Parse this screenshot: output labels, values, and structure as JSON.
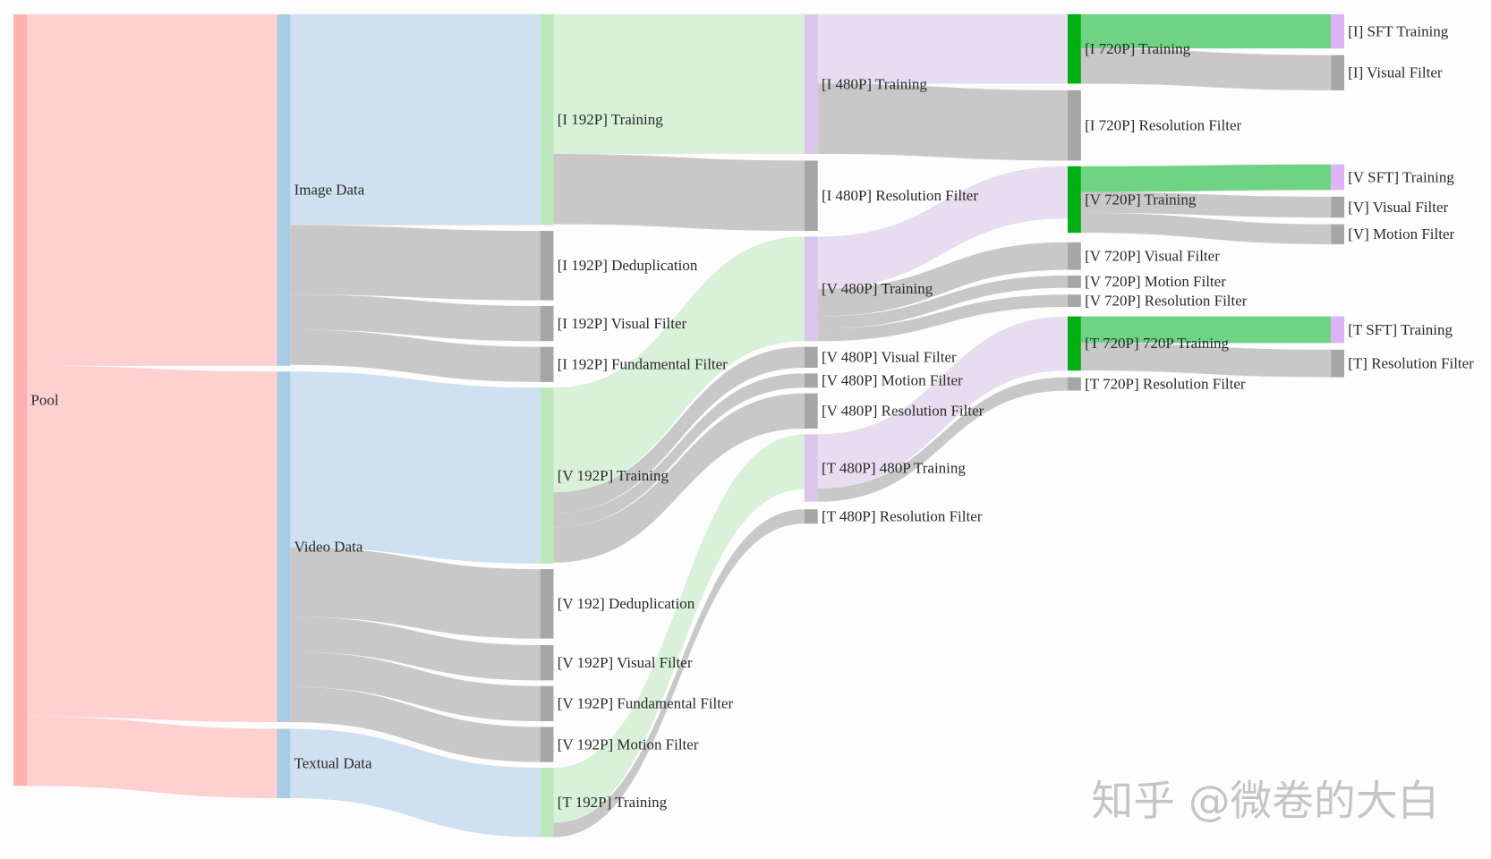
{
  "chart_data": {
    "type": "sankey",
    "title": "",
    "nodes": [
      {
        "name": "Pool",
        "color": "#ffb0b0"
      },
      {
        "name": "Image Data",
        "color": "#a8cce4"
      },
      {
        "name": "Video Data",
        "color": "#a8cce4"
      },
      {
        "name": "Textual Data",
        "color": "#a8cce4"
      },
      {
        "name": "[I 192P] Training",
        "color": "#bde8bd"
      },
      {
        "name": "[I 192P] Deduplication",
        "color": "#a6a6a6"
      },
      {
        "name": "[I 192P] Visual Filter",
        "color": "#a6a6a6"
      },
      {
        "name": "[I 192P] Fundamental Filter",
        "color": "#a6a6a6"
      },
      {
        "name": "[V 192P] Training",
        "color": "#bde8bd"
      },
      {
        "name": "[V 192] Deduplication",
        "color": "#a6a6a6"
      },
      {
        "name": "[V 192P] Visual Filter",
        "color": "#a6a6a6"
      },
      {
        "name": "[V 192P] Fundamental Filter",
        "color": "#a6a6a6"
      },
      {
        "name": "[V 192P] Motion Filter",
        "color": "#a6a6a6"
      },
      {
        "name": "[T 192P] Training",
        "color": "#bde8bd"
      },
      {
        "name": "[I 480P] Training",
        "color": "#dcc4ea"
      },
      {
        "name": "[I 480P] Resolution Filter",
        "color": "#a6a6a6"
      },
      {
        "name": "[V 480P] Training",
        "color": "#dcc4ea"
      },
      {
        "name": "[V 480P] Visual Filter",
        "color": "#a6a6a6"
      },
      {
        "name": "[V 480P] Motion Filter",
        "color": "#a6a6a6"
      },
      {
        "name": "[V 480P] Resolution Filter",
        "color": "#a6a6a6"
      },
      {
        "name": "[T 480P] 480P Training",
        "color": "#dcc4ea"
      },
      {
        "name": "[T 480P] Resolution Filter",
        "color": "#a6a6a6"
      },
      {
        "name": "[I 720P] Training",
        "color": "#00b012"
      },
      {
        "name": "[I 720P] Resolution Filter",
        "color": "#a6a6a6"
      },
      {
        "name": "[V 720P] Training",
        "color": "#00b012"
      },
      {
        "name": "[V 720P] Visual Filter",
        "color": "#a6a6a6"
      },
      {
        "name": "[V 720P] Motion Filter",
        "color": "#a6a6a6"
      },
      {
        "name": "[V 720P] Resolution Filter",
        "color": "#a6a6a6"
      },
      {
        "name": "[T 720P] 720P Training",
        "color": "#00b012"
      },
      {
        "name": "[T 720P] Resolution Filter",
        "color": "#a6a6a6"
      },
      {
        "name": "[I] SFT Training",
        "color": "#ddb2f7"
      },
      {
        "name": "[I] Visual Filter",
        "color": "#a6a6a6"
      },
      {
        "name": "[V SFT] Training",
        "color": "#ddb2f7"
      },
      {
        "name": "[V] Visual Filter",
        "color": "#a6a6a6"
      },
      {
        "name": "[V] Motion Filter",
        "color": "#a6a6a6"
      },
      {
        "name": "[T SFT] Training",
        "color": "#ddb2f7"
      },
      {
        "name": "[T] Resolution Filter",
        "color": "#a6a6a6"
      }
    ],
    "links": [
      {
        "source": 0,
        "target": 1,
        "value": 370,
        "color": "#ffd0d0"
      },
      {
        "source": 0,
        "target": 2,
        "value": 369,
        "color": "#ffd0d0"
      },
      {
        "source": 0,
        "target": 3,
        "value": 73,
        "color": "#ffd0d0"
      },
      {
        "source": 1,
        "target": 4,
        "value": 222,
        "color": "#cfe0f0"
      },
      {
        "source": 1,
        "target": 5,
        "value": 73,
        "color": "#c8c8c8"
      },
      {
        "source": 1,
        "target": 6,
        "value": 37,
        "color": "#c8c8c8"
      },
      {
        "source": 1,
        "target": 7,
        "value": 37,
        "color": "#c8c8c8"
      },
      {
        "source": 2,
        "target": 8,
        "value": 185,
        "color": "#cfe0f0"
      },
      {
        "source": 2,
        "target": 9,
        "value": 73,
        "color": "#c8c8c8"
      },
      {
        "source": 2,
        "target": 10,
        "value": 37,
        "color": "#c8c8c8"
      },
      {
        "source": 2,
        "target": 11,
        "value": 37,
        "color": "#c8c8c8"
      },
      {
        "source": 2,
        "target": 12,
        "value": 37,
        "color": "#c8c8c8"
      },
      {
        "source": 3,
        "target": 13,
        "value": 73,
        "color": "#cfe0f0"
      },
      {
        "source": 4,
        "target": 14,
        "value": 147,
        "color": "#d8f1d8"
      },
      {
        "source": 4,
        "target": 15,
        "value": 74,
        "color": "#c8c8c8"
      },
      {
        "source": 8,
        "target": 16,
        "value": 110,
        "color": "#d8f1d8"
      },
      {
        "source": 8,
        "target": 17,
        "value": 22,
        "color": "#c8c8c8"
      },
      {
        "source": 8,
        "target": 18,
        "value": 15,
        "color": "#c8c8c8"
      },
      {
        "source": 8,
        "target": 19,
        "value": 37,
        "color": "#c8c8c8"
      },
      {
        "source": 13,
        "target": 20,
        "value": 58,
        "color": "#d8f1d8"
      },
      {
        "source": 13,
        "target": 21,
        "value": 15,
        "color": "#c8c8c8"
      },
      {
        "source": 14,
        "target": 22,
        "value": 73,
        "color": "#e8dcf0"
      },
      {
        "source": 14,
        "target": 23,
        "value": 74,
        "color": "#c8c8c8"
      },
      {
        "source": 16,
        "target": 24,
        "value": 55,
        "color": "#e8dcf0"
      },
      {
        "source": 16,
        "target": 25,
        "value": 29,
        "color": "#c8c8c8"
      },
      {
        "source": 16,
        "target": 26,
        "value": 13,
        "color": "#c8c8c8"
      },
      {
        "source": 16,
        "target": 27,
        "value": 13,
        "color": "#c8c8c8"
      },
      {
        "source": 20,
        "target": 28,
        "value": 57,
        "color": "#e8dcf0"
      },
      {
        "source": 20,
        "target": 29,
        "value": 14,
        "color": "#c8c8c8"
      },
      {
        "source": 22,
        "target": 30,
        "value": 36,
        "color": "#6fd383"
      },
      {
        "source": 22,
        "target": 31,
        "value": 37,
        "color": "#c8c8c8"
      },
      {
        "source": 24,
        "target": 32,
        "value": 27,
        "color": "#6fd383"
      },
      {
        "source": 24,
        "target": 33,
        "value": 22,
        "color": "#c8c8c8"
      },
      {
        "source": 24,
        "target": 34,
        "value": 21,
        "color": "#c8c8c8"
      },
      {
        "source": 28,
        "target": 35,
        "value": 28,
        "color": "#6fd383"
      },
      {
        "source": 28,
        "target": 36,
        "value": 29,
        "color": "#c8c8c8"
      }
    ]
  },
  "watermark": "知乎 @微卷的大白"
}
